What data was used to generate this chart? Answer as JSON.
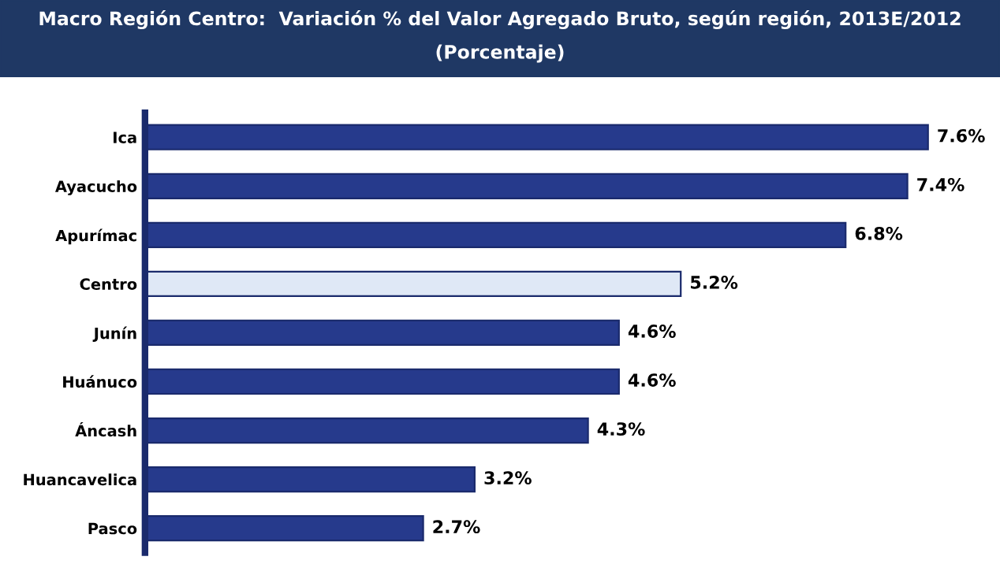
{
  "chart_data": {
    "type": "bar",
    "orientation": "horizontal",
    "title": "Macro Región Centro:  Variación % del Valor Agregado Bruto, según región, 2013E/2012",
    "subtitle": "(Porcentaje)",
    "categories": [
      "Ica",
      "Ayacucho",
      "Apurímac",
      "Centro",
      "Junín",
      "Huánuco",
      "Áncash",
      "Huancavelica",
      "Pasco"
    ],
    "values": [
      7.6,
      7.4,
      6.8,
      5.2,
      4.6,
      4.6,
      4.3,
      3.2,
      2.7
    ],
    "value_labels": [
      "7.6%",
      "7.4%",
      "6.8%",
      "5.2%",
      "4.6%",
      "4.6%",
      "4.3%",
      "3.2%",
      "2.7%"
    ],
    "colors": [
      "#263a8c",
      "#263a8c",
      "#263a8c",
      "#dfe8f6",
      "#263a8c",
      "#263a8c",
      "#263a8c",
      "#263a8c",
      "#263a8c"
    ],
    "grid": false,
    "legend": false
  }
}
